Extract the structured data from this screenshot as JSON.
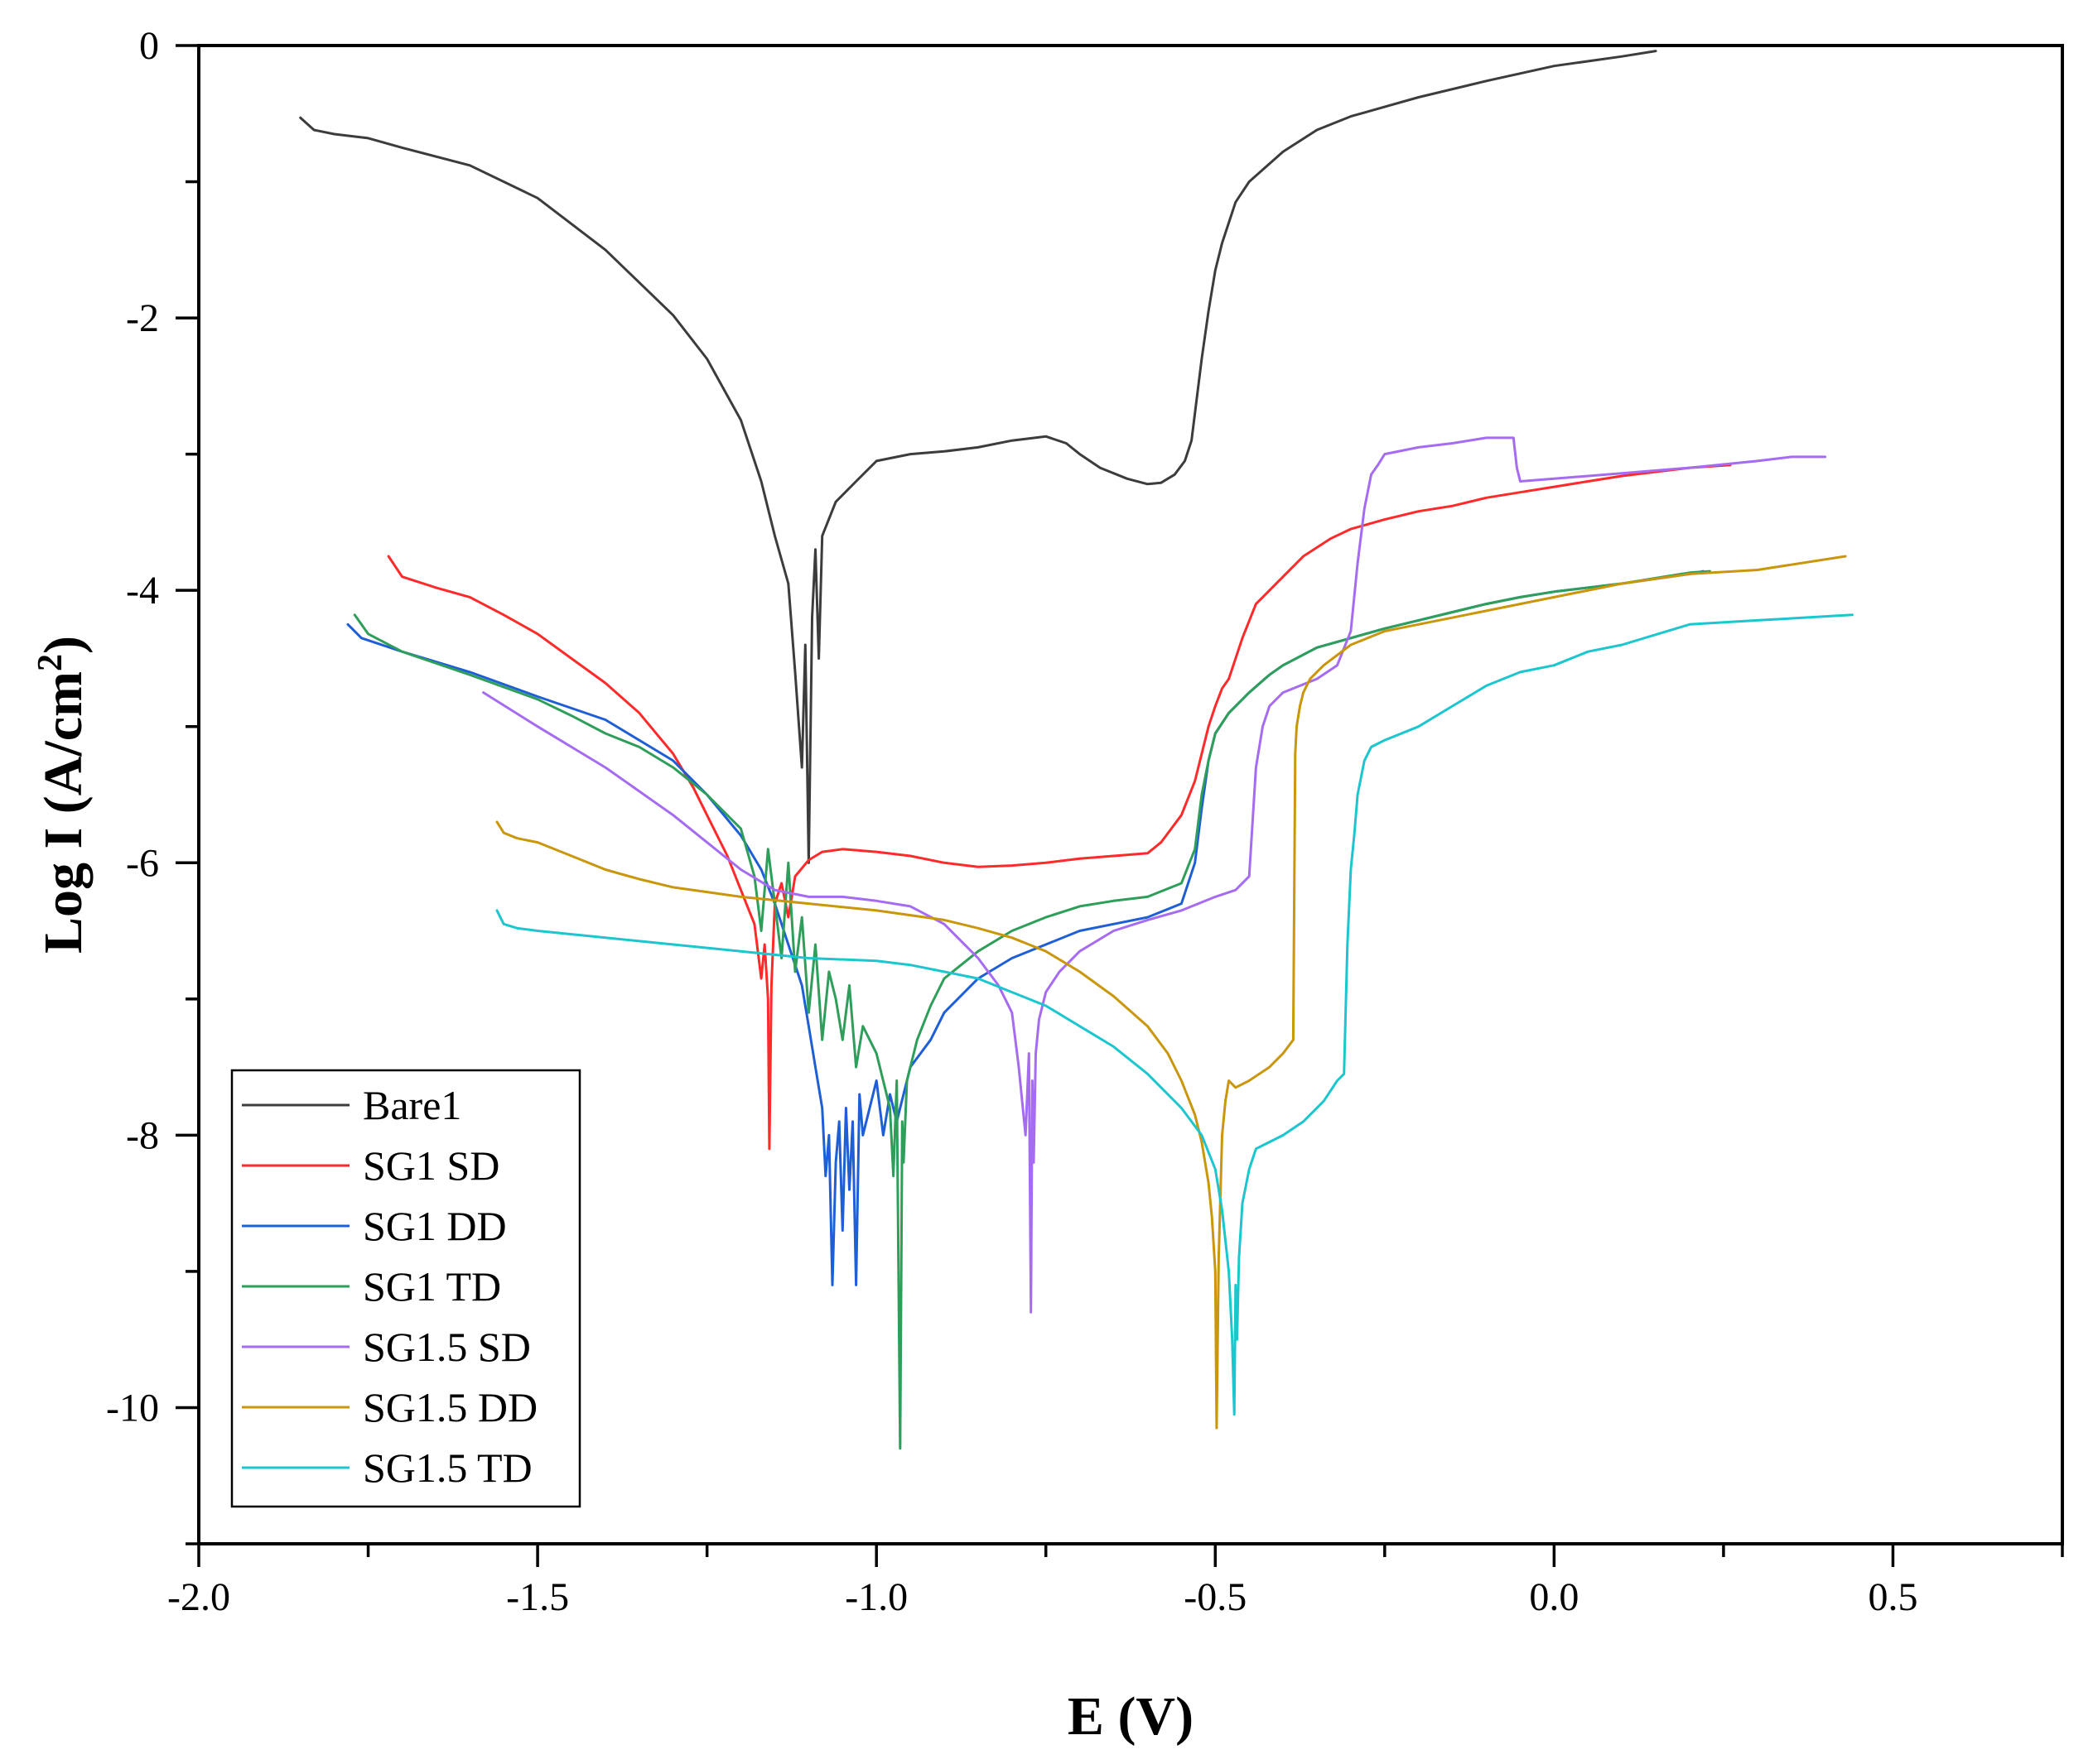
{
  "chart_data": {
    "type": "line",
    "xlabel": "E (V)",
    "ylabel_main": "Log I (A/cm",
    "ylabel_sup": "2",
    "ylabel_close": ")",
    "xlim": [
      -2.0,
      0.75
    ],
    "ylim": [
      -11,
      0
    ],
    "xticks": [
      -2.0,
      -1.5,
      -1.0,
      -0.5,
      0.0,
      0.5
    ],
    "xtick_labels": [
      "-2.0",
      "-1.5",
      "-1.0",
      "-0.5",
      "0.0",
      "0.5"
    ],
    "yticks": [
      0,
      -2,
      -4,
      -6,
      -8,
      -10
    ],
    "ytick_labels": [
      "0",
      "-2",
      "-4",
      "-6",
      "-8",
      "-10"
    ],
    "grid": false,
    "legend_position": "bottom-left",
    "series": [
      {
        "name": "Bare1",
        "color": "#3c3c3c",
        "x": [
          -1.85,
          -1.83,
          -1.8,
          -1.75,
          -1.7,
          -1.6,
          -1.5,
          -1.4,
          -1.3,
          -1.25,
          -1.2,
          -1.17,
          -1.15,
          -1.13,
          -1.12,
          -1.11,
          -1.105,
          -1.1,
          -1.095,
          -1.09,
          -1.085,
          -1.08,
          -1.06,
          -1.03,
          -1.0,
          -0.95,
          -0.9,
          -0.85,
          -0.8,
          -0.75,
          -0.72,
          -0.7,
          -0.67,
          -0.63,
          -0.6,
          -0.58,
          -0.56,
          -0.545,
          -0.535,
          -0.53,
          -0.52,
          -0.51,
          -0.5,
          -0.49,
          -0.47,
          -0.45,
          -0.4,
          -0.35,
          -0.3,
          -0.2,
          -0.1,
          0.0,
          0.1,
          0.15
        ],
        "y": [
          -0.53,
          -0.62,
          -0.65,
          -0.68,
          -0.75,
          -0.88,
          -1.12,
          -1.5,
          -1.98,
          -2.3,
          -2.75,
          -3.2,
          -3.6,
          -3.95,
          -4.6,
          -5.3,
          -4.4,
          -6.0,
          -4.2,
          -3.7,
          -4.5,
          -3.6,
          -3.35,
          -3.2,
          -3.05,
          -3.0,
          -2.98,
          -2.95,
          -2.9,
          -2.87,
          -2.92,
          -3.0,
          -3.1,
          -3.18,
          -3.22,
          -3.21,
          -3.15,
          -3.05,
          -2.9,
          -2.7,
          -2.3,
          -1.95,
          -1.65,
          -1.45,
          -1.15,
          -1.0,
          -0.78,
          -0.62,
          -0.52,
          -0.38,
          -0.26,
          -0.15,
          -0.08,
          -0.04
        ]
      },
      {
        "name": "SG1 SD",
        "color": "#ff2a2a",
        "x": [
          -1.72,
          -1.7,
          -1.65,
          -1.6,
          -1.55,
          -1.5,
          -1.45,
          -1.4,
          -1.35,
          -1.3,
          -1.27,
          -1.25,
          -1.22,
          -1.2,
          -1.18,
          -1.17,
          -1.165,
          -1.16,
          -1.158,
          -1.155,
          -1.15,
          -1.14,
          -1.13,
          -1.12,
          -1.1,
          -1.08,
          -1.05,
          -1.0,
          -0.95,
          -0.9,
          -0.85,
          -0.8,
          -0.75,
          -0.7,
          -0.65,
          -0.6,
          -0.58,
          -0.55,
          -0.53,
          -0.52,
          -0.51,
          -0.5,
          -0.49,
          -0.48,
          -0.46,
          -0.44,
          -0.42,
          -0.4,
          -0.37,
          -0.33,
          -0.3,
          -0.25,
          -0.2,
          -0.15,
          -0.1,
          -0.05,
          0.0,
          0.05,
          0.1,
          0.15,
          0.2,
          0.26
        ],
        "y": [
          -3.75,
          -3.9,
          -3.98,
          -4.05,
          -4.18,
          -4.32,
          -4.5,
          -4.68,
          -4.9,
          -5.2,
          -5.45,
          -5.65,
          -5.95,
          -6.2,
          -6.45,
          -6.85,
          -6.6,
          -7.0,
          -8.1,
          -6.9,
          -6.3,
          -6.15,
          -6.4,
          -6.1,
          -5.98,
          -5.92,
          -5.9,
          -5.92,
          -5.95,
          -6.0,
          -6.03,
          -6.02,
          -6.0,
          -5.97,
          -5.95,
          -5.93,
          -5.85,
          -5.65,
          -5.4,
          -5.2,
          -5.0,
          -4.85,
          -4.72,
          -4.65,
          -4.35,
          -4.1,
          -4.0,
          -3.9,
          -3.75,
          -3.62,
          -3.55,
          -3.48,
          -3.42,
          -3.38,
          -3.32,
          -3.28,
          -3.24,
          -3.2,
          -3.16,
          -3.13,
          -3.1,
          -3.08
        ]
      },
      {
        "name": "SG1 DD",
        "color": "#1f5fd6",
        "x": [
          -1.78,
          -1.76,
          -1.7,
          -1.6,
          -1.5,
          -1.4,
          -1.3,
          -1.25,
          -1.2,
          -1.17,
          -1.15,
          -1.13,
          -1.11,
          -1.1,
          -1.09,
          -1.08,
          -1.075,
          -1.07,
          -1.065,
          -1.06,
          -1.055,
          -1.05,
          -1.045,
          -1.04,
          -1.035,
          -1.03,
          -1.025,
          -1.02,
          -1.01,
          -1.0,
          -0.99,
          -0.98,
          -0.97,
          -0.95,
          -0.92,
          -0.9,
          -0.85,
          -0.8,
          -0.75,
          -0.7,
          -0.65,
          -0.6,
          -0.55,
          -0.53,
          -0.52,
          -0.51,
          -0.5,
          -0.48,
          -0.45,
          -0.42,
          -0.4,
          -0.35,
          -0.3,
          -0.25,
          -0.2,
          -0.15,
          -0.1,
          -0.05,
          0.0,
          0.1,
          0.2,
          0.22
        ],
        "y": [
          -4.25,
          -4.35,
          -4.45,
          -4.6,
          -4.78,
          -4.95,
          -5.25,
          -5.5,
          -5.8,
          -6.05,
          -6.3,
          -6.6,
          -6.9,
          -7.2,
          -7.5,
          -7.8,
          -8.3,
          -8.0,
          -9.1,
          -8.2,
          -7.9,
          -8.7,
          -7.8,
          -8.4,
          -7.9,
          -9.1,
          -7.7,
          -8.0,
          -7.8,
          -7.6,
          -8.0,
          -7.7,
          -7.9,
          -7.5,
          -7.3,
          -7.1,
          -6.85,
          -6.7,
          -6.6,
          -6.5,
          -6.45,
          -6.4,
          -6.3,
          -6.0,
          -5.6,
          -5.25,
          -5.05,
          -4.9,
          -4.75,
          -4.62,
          -4.55,
          -4.42,
          -4.35,
          -4.28,
          -4.22,
          -4.16,
          -4.1,
          -4.05,
          -4.01,
          -3.95,
          -3.88,
          -3.86
        ]
      },
      {
        "name": "SG1 TD",
        "color": "#2e9e5a",
        "x": [
          -1.77,
          -1.76,
          -1.75,
          -1.7,
          -1.6,
          -1.5,
          -1.45,
          -1.4,
          -1.35,
          -1.3,
          -1.25,
          -1.2,
          -1.18,
          -1.17,
          -1.16,
          -1.15,
          -1.14,
          -1.13,
          -1.12,
          -1.11,
          -1.1,
          -1.09,
          -1.08,
          -1.07,
          -1.06,
          -1.05,
          -1.04,
          -1.03,
          -1.02,
          -1.0,
          -0.98,
          -0.975,
          -0.97,
          -0.965,
          -0.962,
          -0.96,
          -0.955,
          -0.95,
          -0.94,
          -0.92,
          -0.9,
          -0.85,
          -0.8,
          -0.75,
          -0.7,
          -0.65,
          -0.6,
          -0.55,
          -0.53,
          -0.52,
          -0.51,
          -0.5,
          -0.48,
          -0.45,
          -0.42,
          -0.4,
          -0.35,
          -0.3,
          -0.25,
          -0.2,
          -0.15,
          -0.1,
          -0.05,
          0.0,
          0.1,
          0.2,
          0.23
        ],
        "y": [
          -4.18,
          -4.25,
          -4.32,
          -4.45,
          -4.62,
          -4.8,
          -4.92,
          -5.05,
          -5.15,
          -5.3,
          -5.5,
          -5.75,
          -6.1,
          -6.5,
          -5.9,
          -6.3,
          -6.7,
          -6.0,
          -6.8,
          -6.4,
          -7.1,
          -6.6,
          -7.3,
          -6.8,
          -7.0,
          -7.3,
          -6.9,
          -7.5,
          -7.2,
          -7.4,
          -7.8,
          -8.3,
          -7.6,
          -10.3,
          -7.9,
          -8.2,
          -7.6,
          -7.5,
          -7.3,
          -7.05,
          -6.85,
          -6.65,
          -6.5,
          -6.4,
          -6.32,
          -6.28,
          -6.25,
          -6.15,
          -5.9,
          -5.5,
          -5.25,
          -5.05,
          -4.9,
          -4.75,
          -4.62,
          -4.55,
          -4.42,
          -4.35,
          -4.28,
          -4.22,
          -4.16,
          -4.1,
          -4.05,
          -4.01,
          -3.95,
          -3.87,
          -3.86
        ]
      },
      {
        "name": "SG1.5 SD",
        "color": "#a56cf2",
        "x": [
          -1.58,
          -1.5,
          -1.4,
          -1.3,
          -1.25,
          -1.2,
          -1.15,
          -1.1,
          -1.05,
          -1.0,
          -0.95,
          -0.9,
          -0.85,
          -0.82,
          -0.8,
          -0.79,
          -0.78,
          -0.775,
          -0.772,
          -0.77,
          -0.768,
          -0.765,
          -0.76,
          -0.75,
          -0.73,
          -0.7,
          -0.65,
          -0.6,
          -0.55,
          -0.5,
          -0.47,
          -0.45,
          -0.44,
          -0.43,
          -0.42,
          -0.4,
          -0.35,
          -0.32,
          -0.3,
          -0.29,
          -0.28,
          -0.27,
          -0.26,
          -0.25,
          -0.2,
          -0.15,
          -0.1,
          -0.06,
          -0.055,
          -0.05,
          0.0,
          0.1,
          0.2,
          0.3,
          0.35,
          0.4
        ],
        "y": [
          -4.75,
          -5.0,
          -5.3,
          -5.65,
          -5.85,
          -6.05,
          -6.2,
          -6.25,
          -6.25,
          -6.28,
          -6.32,
          -6.45,
          -6.7,
          -6.9,
          -7.1,
          -7.5,
          -8.0,
          -7.4,
          -9.3,
          -7.6,
          -8.2,
          -7.4,
          -7.15,
          -6.95,
          -6.8,
          -6.65,
          -6.5,
          -6.42,
          -6.35,
          -6.25,
          -6.2,
          -6.1,
          -5.3,
          -5.0,
          -4.85,
          -4.75,
          -4.65,
          -4.55,
          -4.3,
          -3.8,
          -3.4,
          -3.15,
          -3.08,
          -3.0,
          -2.95,
          -2.92,
          -2.88,
          -2.88,
          -3.1,
          -3.2,
          -3.18,
          -3.14,
          -3.1,
          -3.05,
          -3.02,
          -3.02
        ]
      },
      {
        "name": "SG1.5 DD",
        "color": "#c9960c",
        "x": [
          -1.56,
          -1.55,
          -1.53,
          -1.5,
          -1.45,
          -1.4,
          -1.35,
          -1.3,
          -1.2,
          -1.1,
          -1.0,
          -0.9,
          -0.85,
          -0.8,
          -0.75,
          -0.7,
          -0.65,
          -0.6,
          -0.57,
          -0.55,
          -0.53,
          -0.52,
          -0.51,
          -0.505,
          -0.5,
          -0.498,
          -0.495,
          -0.49,
          -0.485,
          -0.48,
          -0.47,
          -0.45,
          -0.42,
          -0.4,
          -0.385,
          -0.382,
          -0.38,
          -0.375,
          -0.37,
          -0.36,
          -0.34,
          -0.3,
          -0.25,
          -0.2,
          -0.1,
          0.0,
          0.1,
          0.2,
          0.3,
          0.43
        ],
        "y": [
          -5.7,
          -5.78,
          -5.82,
          -5.85,
          -5.95,
          -6.05,
          -6.12,
          -6.18,
          -6.25,
          -6.3,
          -6.35,
          -6.42,
          -6.48,
          -6.55,
          -6.65,
          -6.8,
          -6.98,
          -7.2,
          -7.4,
          -7.6,
          -7.85,
          -8.05,
          -8.35,
          -8.6,
          -9.0,
          -10.15,
          -8.9,
          -8.0,
          -7.75,
          -7.6,
          -7.65,
          -7.6,
          -7.5,
          -7.4,
          -7.3,
          -5.2,
          -5.0,
          -4.85,
          -4.75,
          -4.65,
          -4.55,
          -4.4,
          -4.3,
          -4.25,
          -4.15,
          -4.05,
          -3.95,
          -3.88,
          -3.85,
          -3.75
        ]
      },
      {
        "name": "SG1.5 TD",
        "color": "#1cc6cf",
        "x": [
          -1.56,
          -1.55,
          -1.53,
          -1.5,
          -1.4,
          -1.3,
          -1.2,
          -1.1,
          -1.0,
          -0.95,
          -0.9,
          -0.85,
          -0.8,
          -0.75,
          -0.7,
          -0.65,
          -0.6,
          -0.55,
          -0.52,
          -0.5,
          -0.49,
          -0.48,
          -0.475,
          -0.472,
          -0.47,
          -0.468,
          -0.465,
          -0.46,
          -0.45,
          -0.44,
          -0.42,
          -0.4,
          -0.37,
          -0.34,
          -0.32,
          -0.31,
          -0.305,
          -0.3,
          -0.295,
          -0.29,
          -0.28,
          -0.27,
          -0.25,
          -0.2,
          -0.15,
          -0.1,
          -0.05,
          0.0,
          0.05,
          0.1,
          0.2,
          0.3,
          0.44
        ],
        "y": [
          -6.35,
          -6.45,
          -6.48,
          -6.5,
          -6.55,
          -6.6,
          -6.65,
          -6.7,
          -6.72,
          -6.75,
          -6.8,
          -6.85,
          -6.95,
          -7.05,
          -7.2,
          -7.35,
          -7.55,
          -7.8,
          -8.0,
          -8.25,
          -8.55,
          -9.0,
          -9.5,
          -10.05,
          -9.1,
          -9.5,
          -8.9,
          -8.5,
          -8.25,
          -8.1,
          -8.05,
          -8.0,
          -7.9,
          -7.75,
          -7.6,
          -7.55,
          -6.6,
          -6.05,
          -5.8,
          -5.5,
          -5.25,
          -5.15,
          -5.1,
          -5.0,
          -4.85,
          -4.7,
          -4.6,
          -4.55,
          -4.45,
          -4.4,
          -4.25,
          -4.22,
          -4.18
        ]
      }
    ]
  }
}
